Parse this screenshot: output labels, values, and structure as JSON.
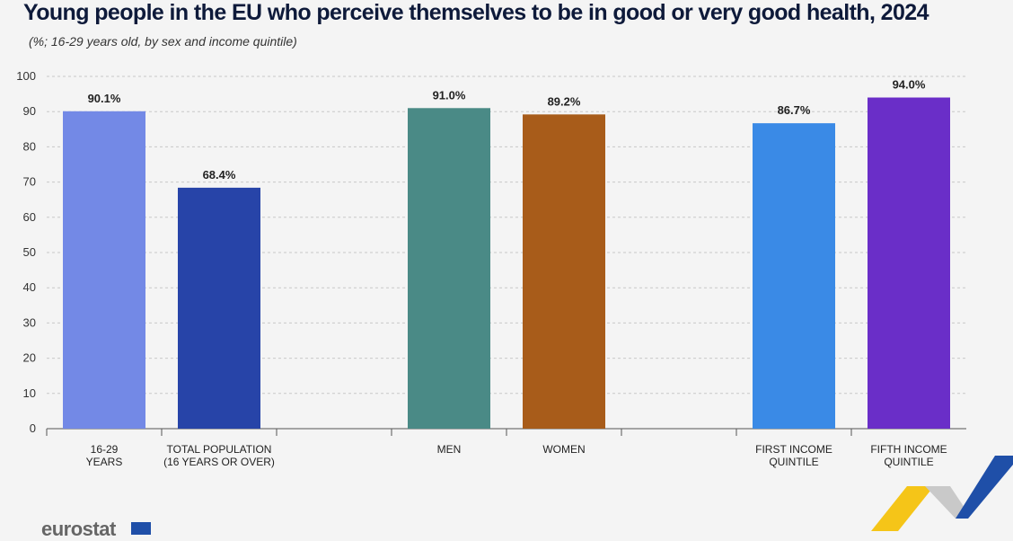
{
  "title": "Young people in the EU who perceive themselves to be in good or very good health, 2024",
  "subtitle": "(%; 16-29 years old, by sex and income quintile)",
  "logo_text": "eurostat",
  "chart_data": {
    "type": "bar",
    "ylim": [
      0,
      100
    ],
    "yticks": [
      0,
      10,
      20,
      30,
      40,
      50,
      60,
      70,
      80,
      90,
      100
    ],
    "grid": true,
    "groups": [
      {
        "bars": [
          {
            "label": [
              "16-29",
              "YEARS"
            ],
            "value": 90.1,
            "value_label": "90.1%",
            "color": "#7389e6"
          },
          {
            "label": [
              "TOTAL POPULATION",
              "(16 YEARS OR OVER)"
            ],
            "value": 68.4,
            "value_label": "68.4%",
            "color": "#2744a8"
          }
        ]
      },
      {
        "bars": [
          {
            "label": [
              "MEN"
            ],
            "value": 91.0,
            "value_label": "91.0%",
            "color": "#4a8a86"
          },
          {
            "label": [
              "WOMEN"
            ],
            "value": 89.2,
            "value_label": "89.2%",
            "color": "#a85c1a"
          }
        ]
      },
      {
        "bars": [
          {
            "label": [
              "FIRST INCOME",
              "QUINTILE"
            ],
            "value": 86.7,
            "value_label": "86.7%",
            "color": "#3a8ae6"
          },
          {
            "label": [
              "FIFTH INCOME",
              "QUINTILE"
            ],
            "value": 94.0,
            "value_label": "94.0%",
            "color": "#6a2ec8"
          }
        ]
      }
    ]
  },
  "colors": {
    "background": "#f4f4f4",
    "gridline": "#c8c8c8",
    "axis": "#555555",
    "deco_yellow": "#f5c518",
    "deco_blue": "#1f4fa8",
    "deco_grey": "#c9c9c9"
  }
}
